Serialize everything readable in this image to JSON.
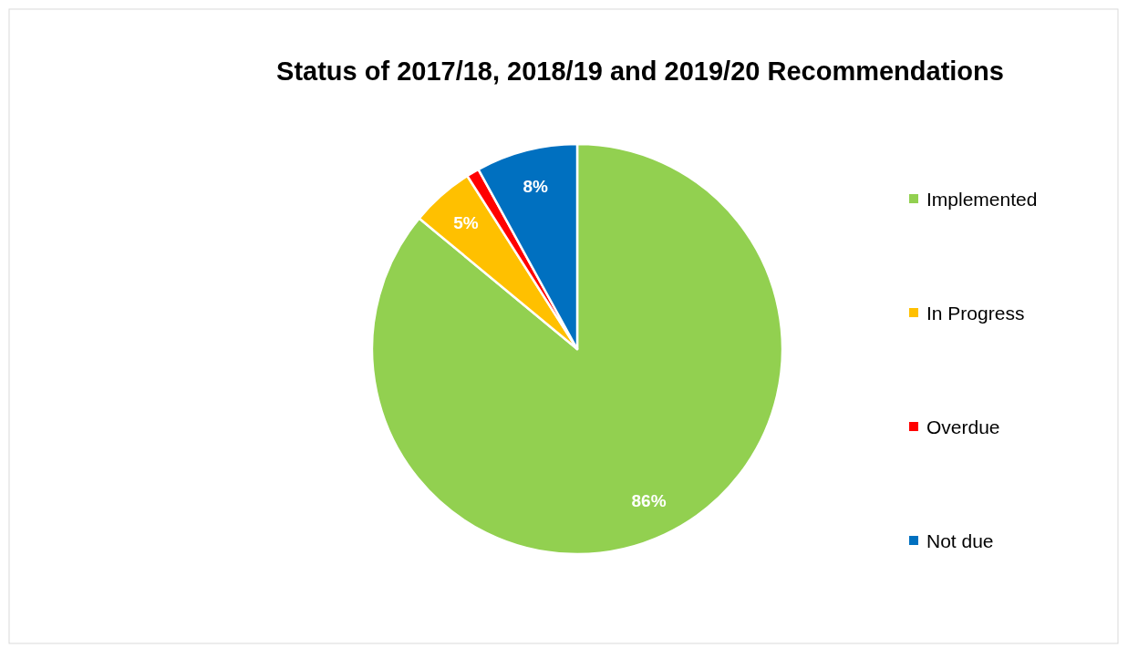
{
  "chart_data": {
    "type": "pie",
    "title": "Status of 2017/18, 2018/19 and 2019/20 Recommendations",
    "categories": [
      "Implemented",
      "In Progress",
      "Overdue",
      "Not due"
    ],
    "values": [
      86,
      5,
      1,
      8
    ],
    "colors": [
      "#92d050",
      "#ffc000",
      "#ff0000",
      "#0070c0"
    ],
    "value_labels": [
      "86%",
      "5%",
      null,
      "8%"
    ],
    "legend": "right"
  }
}
